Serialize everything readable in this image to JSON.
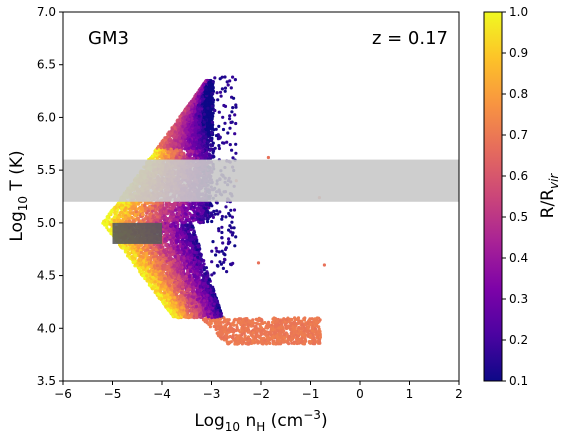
{
  "chart_data": {
    "type": "scatter",
    "panel_label": "GM3",
    "redshift_label": "z = 0.17",
    "xlabel": {
      "base": "Log",
      "sub": "10",
      "mid": " n",
      "sub2": "H",
      "rest": " (cm",
      "sup": "−3",
      "end": ")"
    },
    "ylabel": {
      "base": "Log",
      "sub": "10",
      "rest": " T (K)"
    },
    "xlim": [
      -6,
      2
    ],
    "ylim": [
      3.5,
      7.0
    ],
    "xticks": [
      -6,
      -5,
      -4,
      -3,
      -2,
      -1,
      0,
      1,
      2
    ],
    "xtick_labels": [
      "−6",
      "−5",
      "−4",
      "−3",
      "−2",
      "−1",
      "0",
      "1",
      "2"
    ],
    "yticks": [
      3.5,
      4.0,
      4.5,
      5.0,
      5.5,
      6.0,
      6.5,
      7.0
    ],
    "ytick_labels": [
      "3.5",
      "4.0",
      "4.5",
      "5.0",
      "5.5",
      "6.0",
      "6.5",
      "7.0"
    ],
    "colorbar": {
      "label": {
        "base": "R/R",
        "sub": "vir"
      },
      "range": [
        0.1,
        1.0
      ],
      "ticks": [
        0.1,
        0.2,
        0.3,
        0.4,
        0.5,
        0.6,
        0.7,
        0.8,
        0.9,
        1.0
      ],
      "tick_labels": [
        "0.1",
        "0.2",
        "0.3",
        "0.4",
        "0.5",
        "0.6",
        "0.7",
        "0.8",
        "0.9",
        "1.0"
      ],
      "colormap": "plasma"
    },
    "shaded_band": {
      "y_range": [
        5.2,
        5.6
      ],
      "color": "#c9c9c9"
    },
    "box": {
      "x_range": [
        -5.0,
        -4.0
      ],
      "y_range": [
        4.8,
        5.0
      ],
      "color": "#5a5a5a"
    },
    "point_groups": [
      {
        "region": "dense-cool tail",
        "x_range": [
          -3.2,
          -0.7
        ],
        "T_range": [
          3.8,
          4.05
        ],
        "R_over_Rvir": 0.7
      },
      {
        "region": "hot halo",
        "x_range": [
          -3.5,
          -2.9
        ],
        "T_range": [
          5.5,
          6.35
        ],
        "R_over_Rvir": 0.12
      },
      {
        "region": "outer warm gas",
        "x_range": [
          -5.2,
          -4.2
        ],
        "T_range": [
          4.6,
          5.8
        ],
        "R_over_Rvir": 0.97
      }
    ],
    "outlier_points": [
      {
        "x": -0.82,
        "T": 5.24,
        "R_over_Rvir": 0.68
      },
      {
        "x": -0.72,
        "T": 4.6,
        "R_over_Rvir": 0.68
      },
      {
        "x": -2.05,
        "T": 4.62,
        "R_over_Rvir": 0.68
      },
      {
        "x": -1.85,
        "T": 5.62,
        "R_over_Rvir": 0.68
      },
      {
        "x": -2.5,
        "T": 5.4,
        "R_over_Rvir": 0.68
      },
      {
        "x": -2.6,
        "T": 6.28,
        "R_over_Rvir": 0.15
      }
    ]
  }
}
